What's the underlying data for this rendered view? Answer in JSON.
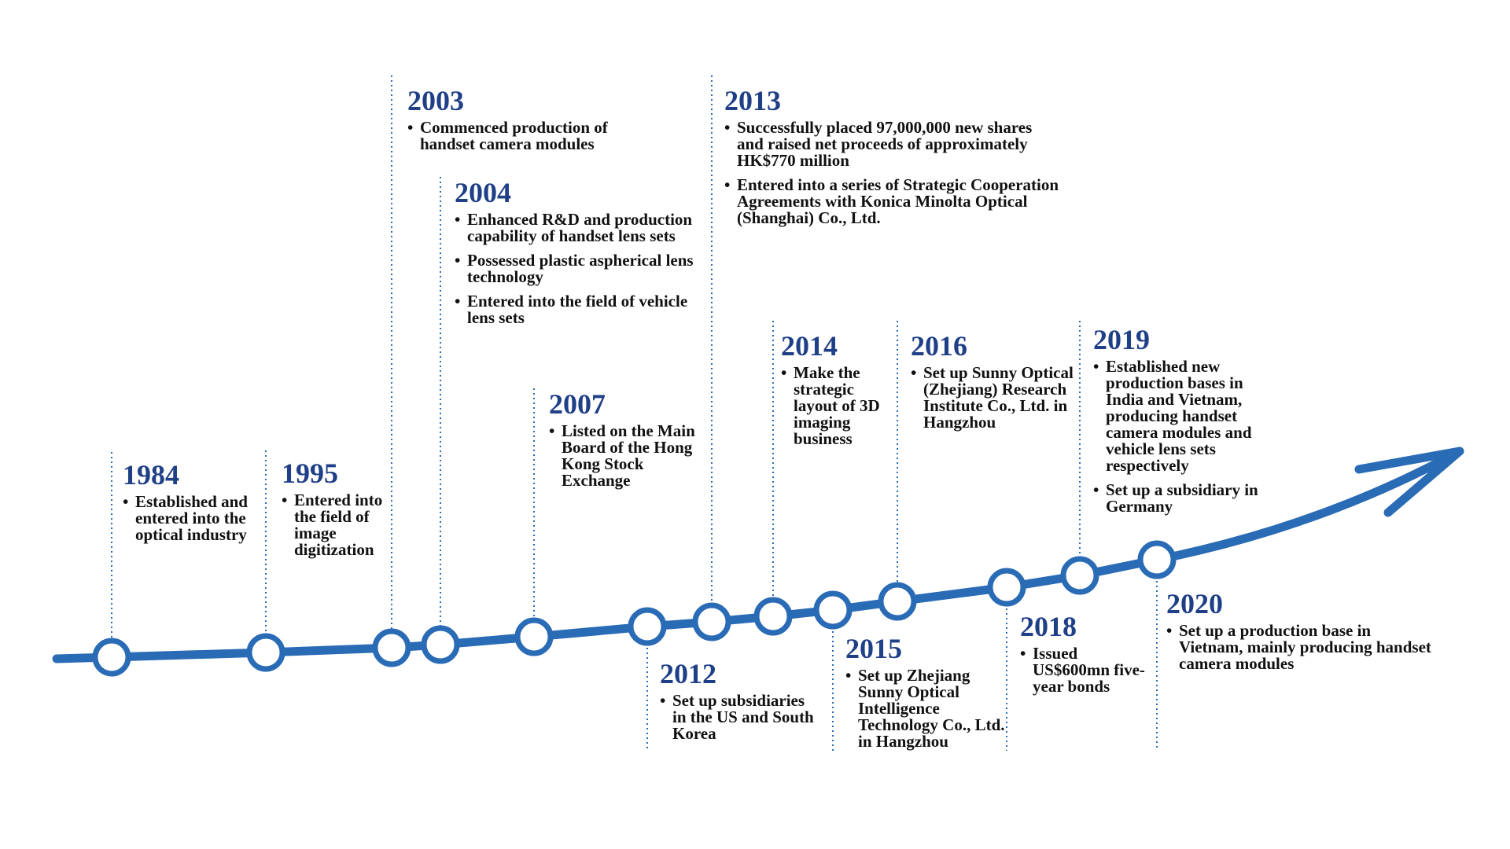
{
  "colors": {
    "line": "#2a6bb6",
    "year": "#1f3f87",
    "text": "#111111",
    "node_fill": "#ffffff"
  },
  "icons": {
    "arrow": "arrow-head-icon",
    "node": "circle-node-icon"
  },
  "milestones": [
    {
      "year": "1984",
      "items": [
        "Established and entered into the optical industry"
      ]
    },
    {
      "year": "1995",
      "items": [
        "Entered into the field of image digitization"
      ]
    },
    {
      "year": "2003",
      "items": [
        "Commenced production of handset camera modules"
      ]
    },
    {
      "year": "2004",
      "items": [
        "Enhanced R&D and production capability of handset lens sets",
        "Possessed plastic aspherical lens technology",
        "Entered into the field of vehicle lens sets"
      ]
    },
    {
      "year": "2007",
      "items": [
        "Listed on the Main Board of the Hong Kong Stock Exchange"
      ]
    },
    {
      "year": "2012",
      "items": [
        "Set up subsidiaries in the US and South Korea"
      ]
    },
    {
      "year": "2013",
      "items": [
        "Successfully placed 97,000,000 new shares and raised net proceeds of approximately HK$770 million",
        "Entered into a series of Strategic Cooperation Agreements with Konica Minolta Optical (Shanghai) Co., Ltd."
      ]
    },
    {
      "year": "2014",
      "items": [
        "Make the strategic layout of 3D imaging business"
      ]
    },
    {
      "year": "2015",
      "items": [
        "Set up Zhejiang Sunny Optical Intelligence Technology Co., Ltd. in Hangzhou"
      ]
    },
    {
      "year": "2016",
      "items": [
        "Set up Sunny Optical (Zhejiang) Research Institute Co., Ltd. in Hangzhou"
      ]
    },
    {
      "year": "2018",
      "items": [
        "Issued US$600mn five-year bonds"
      ]
    },
    {
      "year": "2019",
      "items": [
        "Established new production bases in India and Vietnam, producing handset camera modules and vehicle lens sets respectively",
        "Set up a subsidiary in Germany"
      ]
    },
    {
      "year": "2020",
      "items": [
        "Set up a production base in Vietnam, mainly producing handset camera modules"
      ]
    }
  ]
}
